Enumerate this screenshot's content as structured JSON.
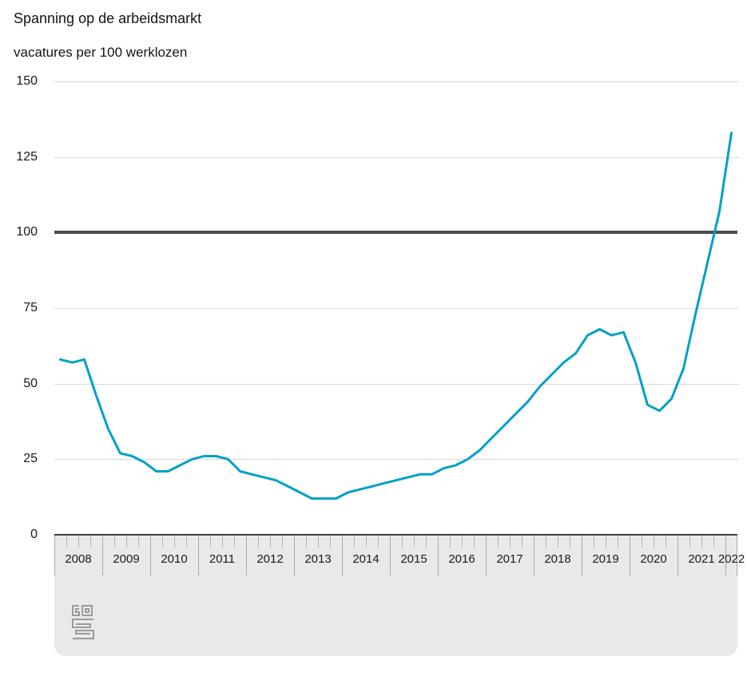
{
  "header": {
    "title": "Spanning op de arbeidsmarkt",
    "subtitle": "vacatures per 100 werklozen"
  },
  "chart_data": {
    "type": "line",
    "title": "Spanning op de arbeidsmarkt",
    "ylabel": "vacatures per 100 werklozen",
    "xlabel": "",
    "x_unit": "quarter",
    "x_range": "2008Q1 - 2022Q1",
    "years": [
      "2008",
      "2009",
      "2010",
      "2011",
      "2012",
      "2013",
      "2014",
      "2015",
      "2016",
      "2017",
      "2018",
      "2019",
      "2020",
      "2021",
      "2022"
    ],
    "quarters_per_year": 4,
    "last_year_quarters": 1,
    "y_ticks": [
      0,
      25,
      50,
      75,
      100,
      125,
      150
    ],
    "ylim": [
      0,
      150
    ],
    "reference_line": 100,
    "grid": true,
    "legend": false,
    "series": [
      {
        "name": "vacatures per 100 werklozen",
        "values": [
          58,
          57,
          58,
          46,
          35,
          27,
          26,
          24,
          21,
          21,
          23,
          25,
          26,
          26,
          25,
          21,
          20,
          19,
          18,
          16,
          14,
          12,
          12,
          12,
          14,
          15,
          16,
          17,
          18,
          19,
          20,
          20,
          22,
          23,
          25,
          28,
          32,
          36,
          40,
          44,
          49,
          53,
          57,
          60,
          66,
          68,
          66,
          67,
          57,
          43,
          41,
          45,
          55,
          73,
          90,
          107,
          133
        ]
      }
    ],
    "colors": {
      "line": "#00a0c6",
      "reference_line": "#4b4b4b",
      "gridline": "#d9d9d9",
      "axis_line": "#3d3d3d",
      "axis_band": "#e9e9e9",
      "tick": "#b5b5b5",
      "separator": "#a9a9a9",
      "text": "#1a1a1a",
      "logo": "#9b9b9b"
    }
  },
  "footer": {
    "logo_name": "cbs-logo"
  }
}
